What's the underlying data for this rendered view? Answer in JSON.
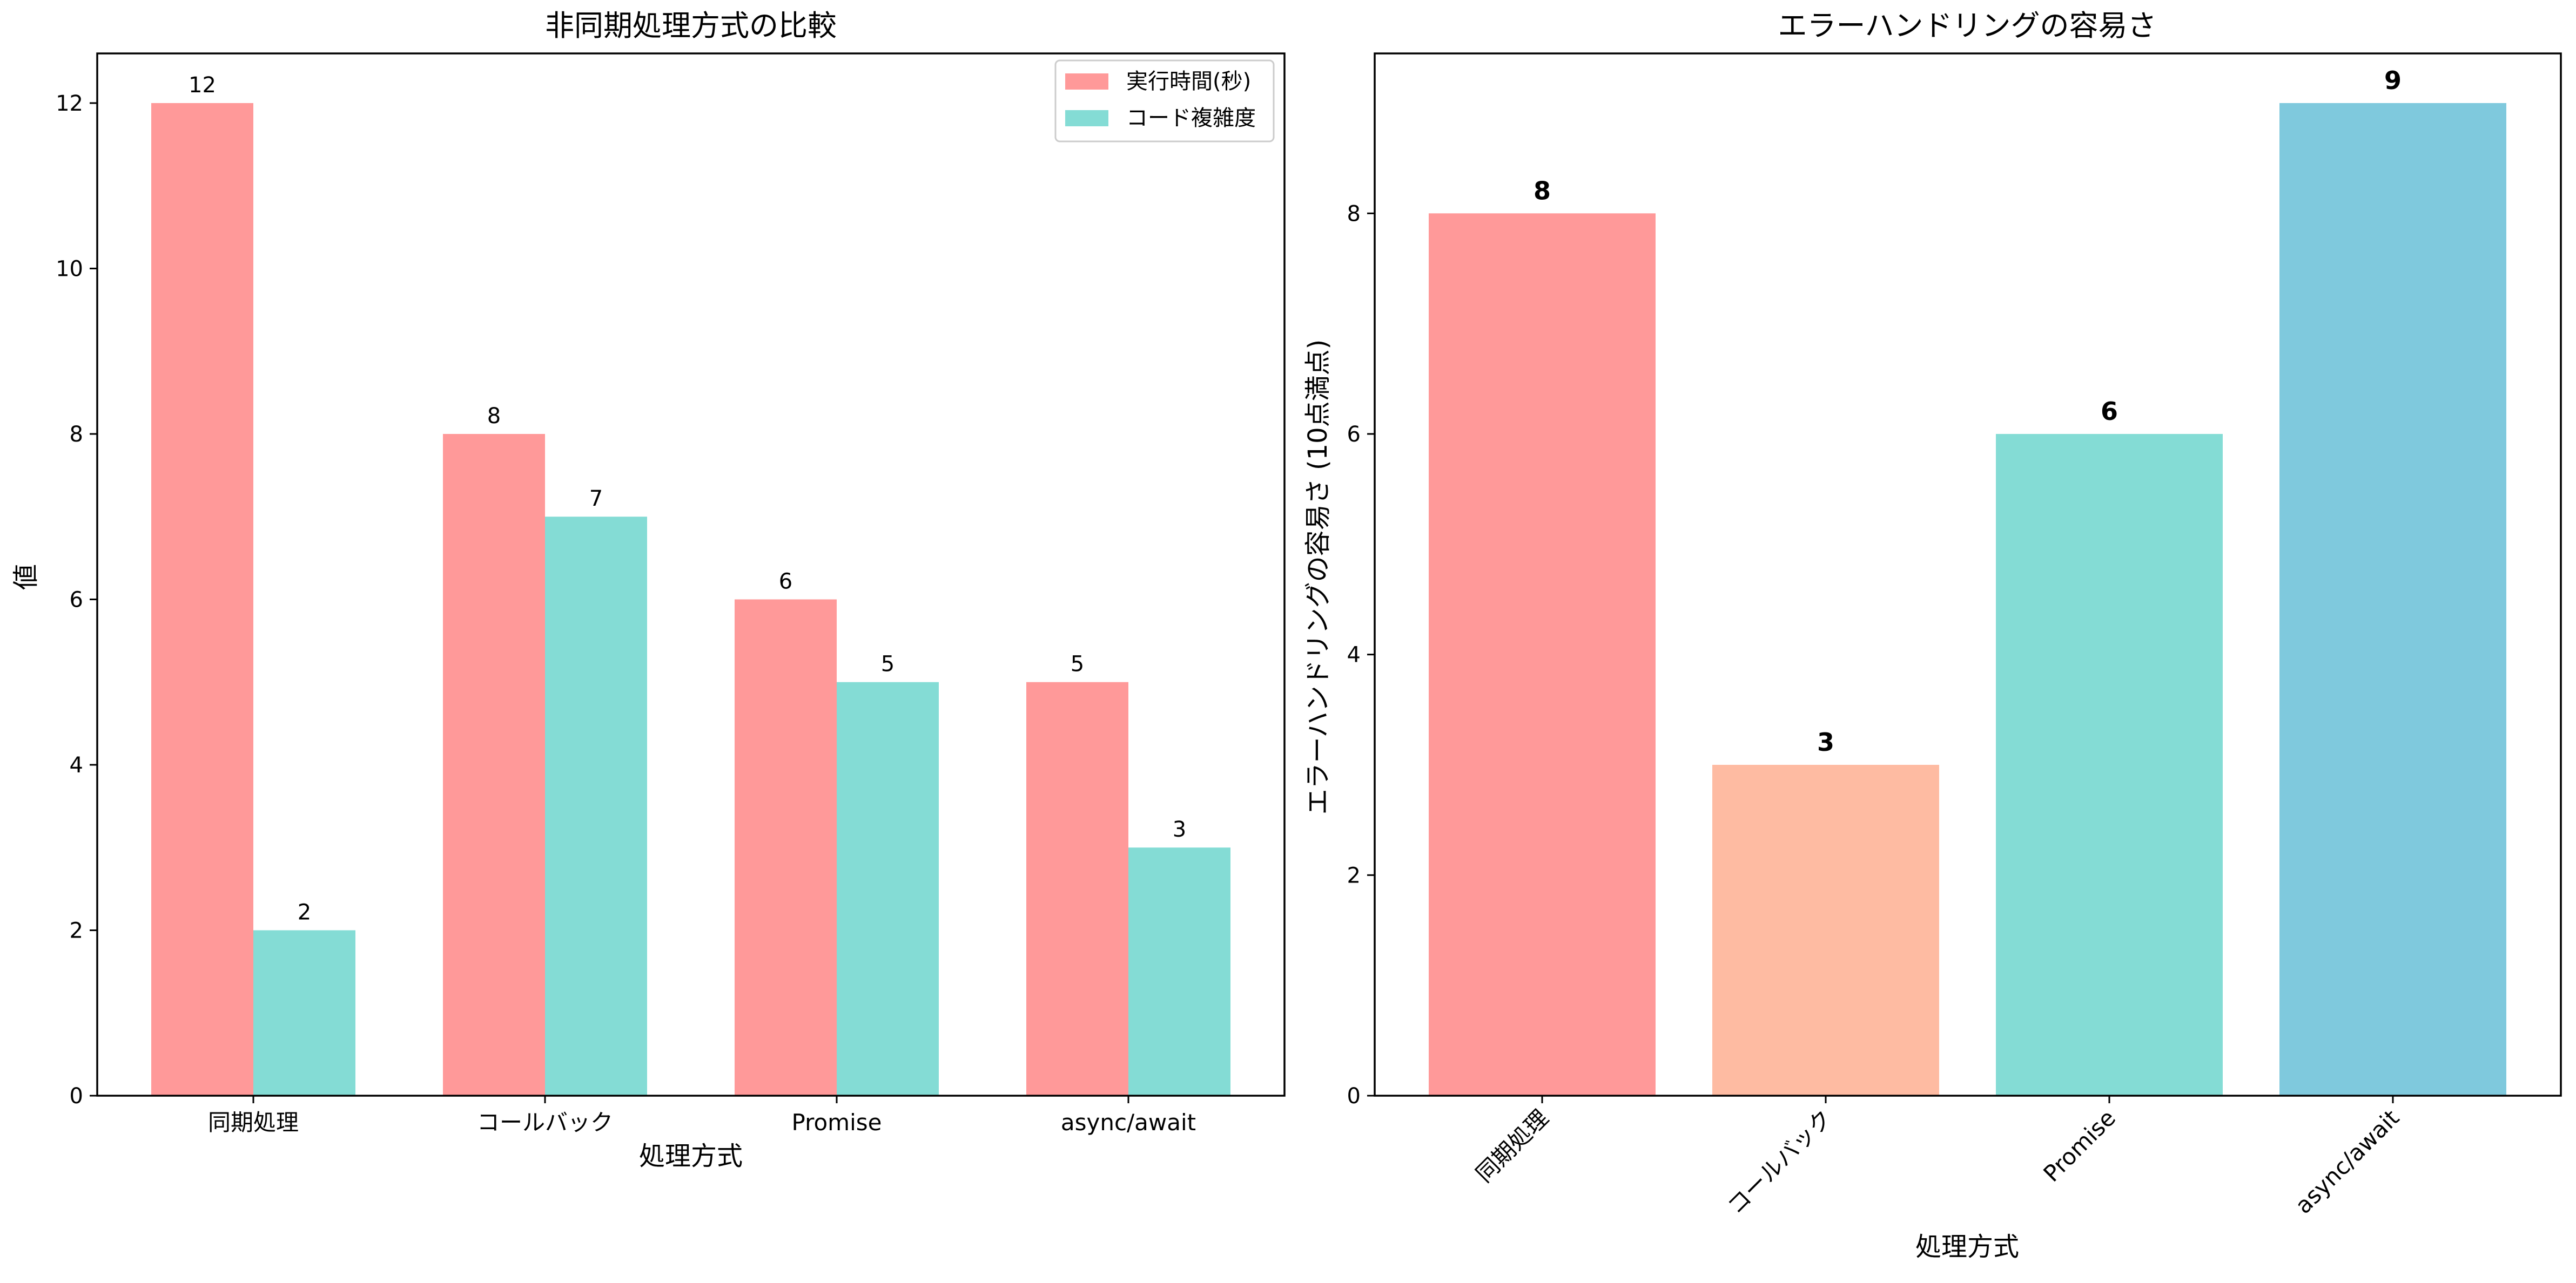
{
  "chart_data": [
    {
      "type": "bar",
      "title": "非同期処理方式の比較",
      "xlabel": "処理方式",
      "ylabel": "値",
      "categories": [
        "同期処理",
        "コールバック",
        "Promise",
        "async/await"
      ],
      "series": [
        {
          "name": "実行時間(秒)",
          "values": [
            12,
            8,
            6,
            5
          ],
          "color": "#FF9999"
        },
        {
          "name": "コード複雑度",
          "values": [
            2,
            7,
            5,
            3
          ],
          "color": "#84DCD5"
        }
      ],
      "ylim": [
        0,
        12.6
      ],
      "yticks": [
        0,
        2,
        4,
        6,
        8,
        10,
        12
      ],
      "legend": "top-right",
      "grid": false,
      "data_labels": true
    },
    {
      "type": "bar",
      "title": "エラーハンドリングの容易さ",
      "xlabel": "処理方式",
      "ylabel": "エラーハンドリングの容易さ (10点満点)",
      "categories": [
        "同期処理",
        "コールバック",
        "Promise",
        "async/await"
      ],
      "values": [
        8,
        3,
        6,
        9
      ],
      "colors": [
        "#FF9999",
        "#FEBBA2",
        "#84DCD5",
        "#7FC9DD"
      ],
      "ylim": [
        0,
        9.45
      ],
      "yticks": [
        0,
        2,
        4,
        6,
        8
      ],
      "tick_rotation": 45,
      "grid": false,
      "data_labels": true,
      "data_label_weight": "bold"
    }
  ]
}
